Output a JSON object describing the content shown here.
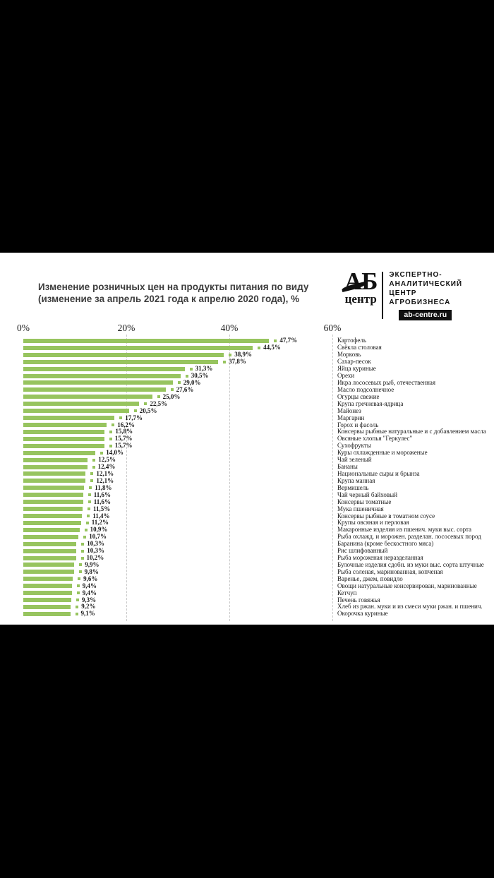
{
  "page": {
    "background": "#000000",
    "panel_background": "#ffffff"
  },
  "title": {
    "line1": "Изменение розничных цен на продукты питания по виду",
    "line2": "(изменение за апрель 2021 года к апрелю 2020 года), %"
  },
  "logo": {
    "monogram": "АБ",
    "monogram_sub": "центр",
    "org_lines": [
      "ЭКСПЕРТНО-",
      "АНАЛИТИЧЕСКИЙ",
      "ЦЕНТР",
      "АГРОБИЗНЕСА"
    ],
    "website": "ab-centre.ru"
  },
  "chart_data": {
    "type": "bar",
    "orientation": "horizontal",
    "title": "Изменение розничных цен на продукты питания по виду (изменение за апрель 2021 года к апрелю 2020 года), %",
    "x_ticks": [
      "0%",
      "20%",
      "40%",
      "60%"
    ],
    "xlim": [
      0,
      60
    ],
    "grid": "vertical dashed lines at 20%, 40%, 60%",
    "legend": "none",
    "bar_color": "#97c45f",
    "value_label_color": "#1a1a1a",
    "gridline_color": "#c9c9c9",
    "categories": [
      "Картофель",
      "Свёкла столовая",
      "Морковь",
      "Сахар-песок",
      "Яйца куриные",
      "Орехи",
      "Икра лососевых рыб, отечественная",
      "Масло подсолнечное",
      "Огурцы свежие",
      "Крупа гречневая-ядрица",
      "Майонез",
      "Маргарин",
      "Горох и фасоль",
      "Консервы рыбные натуральные и с добавлением масла",
      "Овсяные хлопья \"Геркулес\"",
      "Сухофрукты",
      "Куры охлажденные и мороженые",
      "Чай зеленый",
      "Бананы",
      "Национальные сыры и брынза",
      "Крупа манная",
      "Вермишель",
      "Чай черный байховый",
      "Консервы томатные",
      "Мука пшеничная",
      "Консервы рыбные в томатном соусе",
      "Крупы овсяная и перловая",
      "Макаронные изделия из пшенич. муки выс. сорта",
      "Рыба охлажд. и морожен. разделан. лососевых пород",
      "Баранина (кроме бескостного мяса)",
      "Рис шлифованный",
      "Рыба мороженая неразделанная",
      "Булочные изделия сдобн. из муки выс. сорта штучные",
      "Рыба соленая, маринованная, копченая",
      "Варенье, джем, повидло",
      "Овощи натуральные консервирован, маринованные",
      "Кетчуп",
      "Печень говяжья",
      "Хлеб из ржан. муки и из смеси муки ржан. и пшенич.",
      "Окорочка куриные"
    ],
    "values": [
      47.7,
      44.5,
      38.9,
      37.8,
      31.3,
      30.5,
      29.0,
      27.6,
      25.0,
      22.5,
      20.5,
      17.7,
      16.2,
      15.8,
      15.7,
      15.7,
      14.0,
      12.5,
      12.4,
      12.1,
      12.1,
      11.8,
      11.6,
      11.6,
      11.5,
      11.4,
      11.2,
      10.9,
      10.7,
      10.3,
      10.3,
      10.2,
      9.9,
      9.8,
      9.6,
      9.4,
      9.4,
      9.3,
      9.2,
      9.1
    ],
    "value_labels": [
      "47,7%",
      "44,5%",
      "38,9%",
      "37,8%",
      "31,3%",
      "30,5%",
      "29,0%",
      "27,6%",
      "25,0%",
      "22,5%",
      "20,5%",
      "17,7%",
      "16,2%",
      "15,8%",
      "15,7%",
      "15,7%",
      "14,0%",
      "12,5%",
      "12,4%",
      "12,1%",
      "12,1%",
      "11,8%",
      "11,6%",
      "11,6%",
      "11,5%",
      "11,4%",
      "11,2%",
      "10,9%",
      "10,7%",
      "10,3%",
      "10,3%",
      "10,2%",
      "9,9%",
      "9,8%",
      "9,6%",
      "9,4%",
      "9,4%",
      "9,3%",
      "9,2%",
      "9,1%"
    ]
  }
}
